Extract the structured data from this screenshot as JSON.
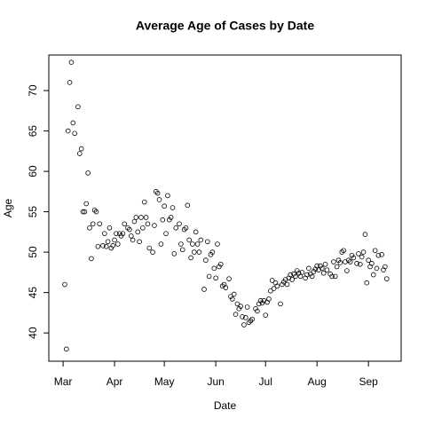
{
  "chart_data": {
    "type": "scatter",
    "title": "Average Age of Cases by Date",
    "x_label": "Date",
    "y_label": "Age",
    "color": "#000000",
    "xlim": [
      -8.6,
      203.7
    ],
    "ylim": [
      36.5,
      74.4
    ],
    "xticks": [
      {
        "value": 0,
        "label": "Mar"
      },
      {
        "value": 31,
        "label": "Apr"
      },
      {
        "value": 61,
        "label": "May"
      },
      {
        "value": 92,
        "label": "Jun"
      },
      {
        "value": 122,
        "label": "Jul"
      },
      {
        "value": 153,
        "label": "Aug"
      },
      {
        "value": 184,
        "label": "Sep"
      }
    ],
    "yticks": [
      40,
      45,
      50,
      55,
      60,
      65,
      70
    ],
    "x": [
      1,
      2,
      3,
      4,
      5,
      6,
      7,
      9,
      10,
      11,
      12,
      13,
      14,
      15,
      16,
      17,
      18,
      19,
      20,
      21,
      22,
      24,
      25,
      26,
      27,
      28,
      29,
      30,
      31,
      32,
      33,
      34,
      35,
      36,
      37,
      39,
      40,
      41,
      42,
      43,
      44,
      45,
      46,
      47,
      48,
      49,
      50,
      51,
      52,
      54,
      55,
      56,
      57,
      58,
      59,
      60,
      61,
      62,
      63,
      64,
      65,
      66,
      67,
      68,
      70,
      71,
      72,
      73,
      74,
      75,
      76,
      77,
      78,
      79,
      80,
      81,
      82,
      83,
      85,
      86,
      87,
      88,
      89,
      90,
      91,
      92,
      93,
      94,
      95,
      96,
      97,
      98,
      100,
      101,
      102,
      103,
      104,
      105,
      106,
      107,
      108,
      109,
      110,
      111,
      112,
      113,
      114,
      116,
      117,
      118,
      119,
      120,
      121,
      122,
      123,
      124,
      125,
      126,
      127,
      128,
      129,
      131,
      132,
      133,
      134,
      135,
      136,
      137,
      138,
      139,
      140,
      141,
      142,
      143,
      144,
      146,
      147,
      148,
      149,
      150,
      151,
      152,
      153,
      154,
      155,
      156,
      157,
      158,
      159,
      161,
      162,
      163,
      164,
      165,
      166,
      167,
      168,
      169,
      170,
      171,
      172,
      173,
      174,
      175,
      177,
      178,
      179,
      180,
      181,
      182,
      183,
      184,
      185,
      186,
      187,
      188,
      189,
      190,
      192,
      193,
      194,
      195
    ],
    "values": [
      46,
      38,
      65,
      71,
      73.5,
      66,
      64.7,
      68,
      62.2,
      62.8,
      55,
      55,
      56,
      59.8,
      53,
      49.2,
      53.5,
      55.2,
      55,
      50.7,
      53.5,
      50.8,
      52.3,
      50.7,
      51.3,
      53,
      50.5,
      50.8,
      51.5,
      52.3,
      51,
      52.3,
      52,
      52.3,
      53.5,
      53,
      52.8,
      52,
      51.5,
      53.8,
      54.3,
      52.5,
      51.3,
      54.3,
      53,
      56.2,
      54.3,
      53.5,
      50.5,
      50,
      53.3,
      57.5,
      57.3,
      56.5,
      51,
      54,
      55.7,
      52.3,
      57,
      54,
      54.3,
      55.5,
      49.8,
      53,
      53.5,
      51,
      50.3,
      52.8,
      53,
      55.8,
      51.5,
      49.3,
      51,
      50,
      52.5,
      51,
      50,
      51.5,
      45.4,
      49,
      51.3,
      47,
      49.7,
      50,
      48,
      46.8,
      51,
      48.2,
      48.5,
      45.8,
      46,
      45.6,
      46.7,
      44.5,
      44.2,
      44.8,
      42.3,
      43.6,
      43,
      43.3,
      42,
      41,
      41.9,
      43.2,
      41.3,
      41.5,
      41.7,
      43,
      42.7,
      43.6,
      44,
      43.7,
      44,
      42.2,
      43.8,
      44.2,
      45.2,
      46.5,
      45.5,
      46.2,
      45.8,
      43.6,
      46,
      46.3,
      46.6,
      46,
      46.8,
      47.2,
      46.6,
      47.3,
      47,
      47.7,
      47.4,
      47,
      47.5,
      46.8,
      47.2,
      48,
      47.3,
      47,
      47.6,
      47.9,
      48.3,
      47.8,
      48.3,
      48,
      47.4,
      48.5,
      47.8,
      47.3,
      47,
      48.8,
      47,
      48.2,
      49,
      48.7,
      50,
      50.2,
      48.8,
      47.7,
      49,
      48.8,
      49.6,
      49.3,
      48.6,
      49.8,
      48.5,
      49.4,
      50,
      52.2,
      46.2,
      49,
      48.2,
      48.6,
      47.2,
      50.2,
      48,
      49.6,
      49.7,
      47.8,
      48.2,
      46.7
    ]
  }
}
